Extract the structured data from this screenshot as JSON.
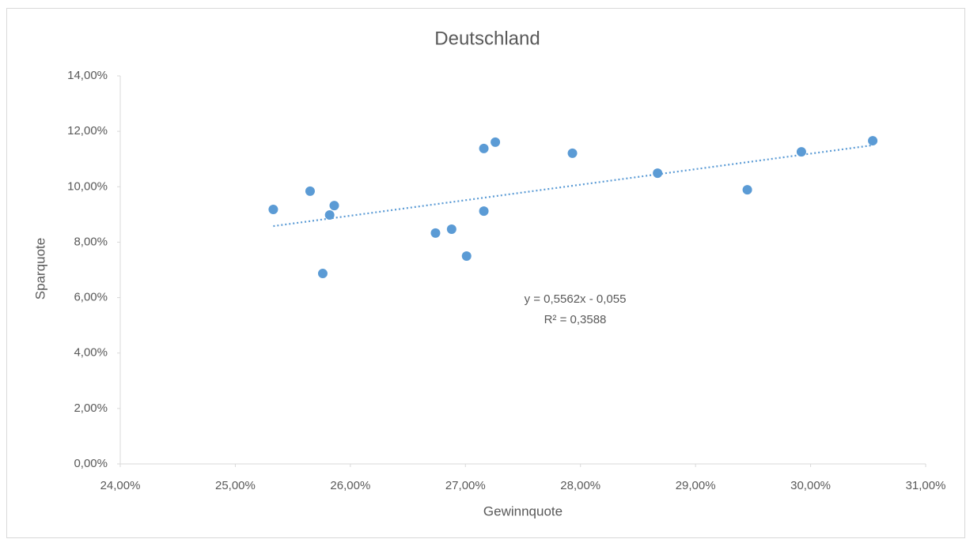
{
  "chart_data": {
    "type": "scatter",
    "title": "Deutschland",
    "x_label": "Gewinnquote",
    "y_label": "Sparquote",
    "annotations": [
      "y = 0,5562x - 0,055",
      "R² = 0,3588"
    ],
    "x": [
      25.33,
      25.65,
      25.76,
      25.82,
      25.86,
      26.74,
      26.88,
      27.01,
      27.16,
      27.16,
      27.26,
      27.93,
      28.67,
      29.45,
      29.92,
      30.54
    ],
    "values": [
      9.18,
      9.84,
      6.87,
      8.98,
      9.32,
      8.33,
      8.47,
      7.5,
      9.12,
      11.38,
      11.61,
      11.21,
      10.49,
      9.89,
      11.26,
      11.66
    ],
    "color": "#5b9bd5",
    "trendline": true,
    "trendline_color": "#5b9bd5",
    "xlim": [
      24,
      31
    ],
    "xticks": [
      {
        "value": 24,
        "label": "24,00%"
      },
      {
        "value": 25,
        "label": "25,00%"
      },
      {
        "value": 26,
        "label": "26,00%"
      },
      {
        "value": 27,
        "label": "27,00%"
      },
      {
        "value": 28,
        "label": "28,00%"
      },
      {
        "value": 29,
        "label": "29,00%"
      },
      {
        "value": 30,
        "label": "30,00%"
      },
      {
        "value": 31,
        "label": "31,00%"
      }
    ],
    "ylim": [
      0,
      14
    ],
    "yticks": [
      {
        "value": 0,
        "label": "0,00%"
      },
      {
        "value": 2,
        "label": "2,00%"
      },
      {
        "value": 4,
        "label": "4,00%"
      },
      {
        "value": 6,
        "label": "6,00%"
      },
      {
        "value": 8,
        "label": "8,00%"
      },
      {
        "value": 10,
        "label": "10,00%"
      },
      {
        "value": 12,
        "label": "12,00%"
      },
      {
        "value": 14,
        "label": "14,00%"
      }
    ],
    "grid": false
  }
}
